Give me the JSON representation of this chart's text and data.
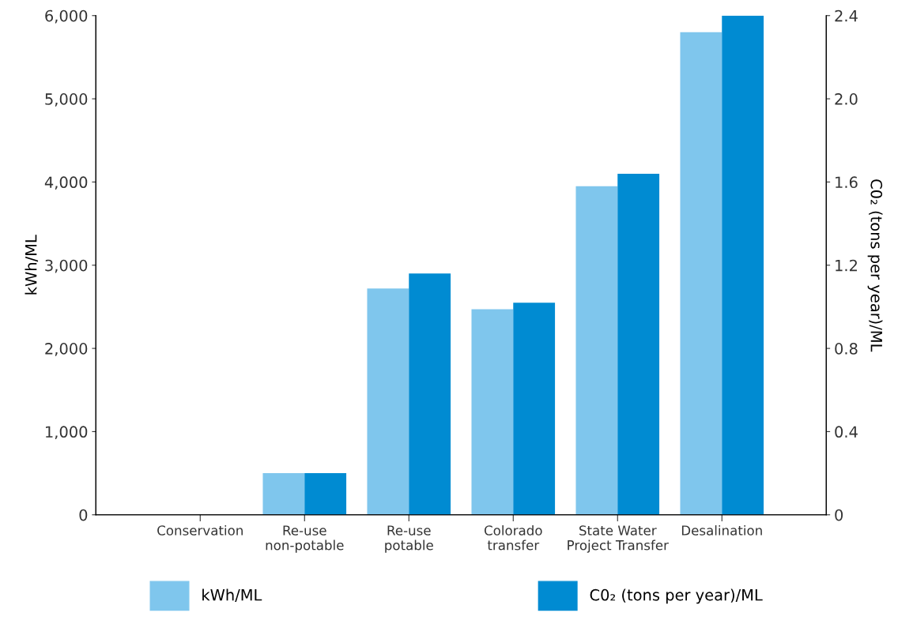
{
  "chart_data": {
    "type": "bar",
    "categories": [
      "Conservation",
      "Re-use\nnon-potable",
      "Re-use\npotable",
      "Colorado\ntransfer",
      "State Water\nProject Transfer",
      "Desalination"
    ],
    "ylabel": "kWh/ML",
    "y2label": "C0₂ (tons per year)/ML",
    "series": [
      {
        "name": "kWh/ML",
        "color": "#7fc6ed",
        "values": [
          0,
          500,
          2720,
          2470,
          3950,
          5800
        ]
      },
      {
        "name": "C0₂ (tons per year)/ML",
        "color": "#008bd2",
        "axis": "y2",
        "values": [
          0,
          0.2,
          1.16,
          1.02,
          1.64,
          2.4
        ]
      }
    ],
    "ylim": [
      0,
      6000
    ],
    "yticks": [
      {
        "value": 0,
        "label": "0"
      },
      {
        "value": 1000,
        "label": "1,000"
      },
      {
        "value": 2000,
        "label": "2,000"
      },
      {
        "value": 3000,
        "label": "3,000"
      },
      {
        "value": 4000,
        "label": "4,000"
      },
      {
        "value": 5000,
        "label": "5,000"
      },
      {
        "value": 6000,
        "label": "6,000"
      }
    ],
    "y2lim": [
      0,
      2.4
    ],
    "y2ticks": [
      {
        "value": 0,
        "label": "0"
      },
      {
        "value": 0.4,
        "label": "0.4"
      },
      {
        "value": 0.8,
        "label": "0.8"
      },
      {
        "value": 1.2,
        "label": "1.2"
      },
      {
        "value": 1.6,
        "label": "1.6"
      },
      {
        "value": 2.0,
        "label": "2.0"
      },
      {
        "value": 2.4,
        "label": "2.4"
      }
    ],
    "grid": false,
    "legend": "bottom"
  }
}
